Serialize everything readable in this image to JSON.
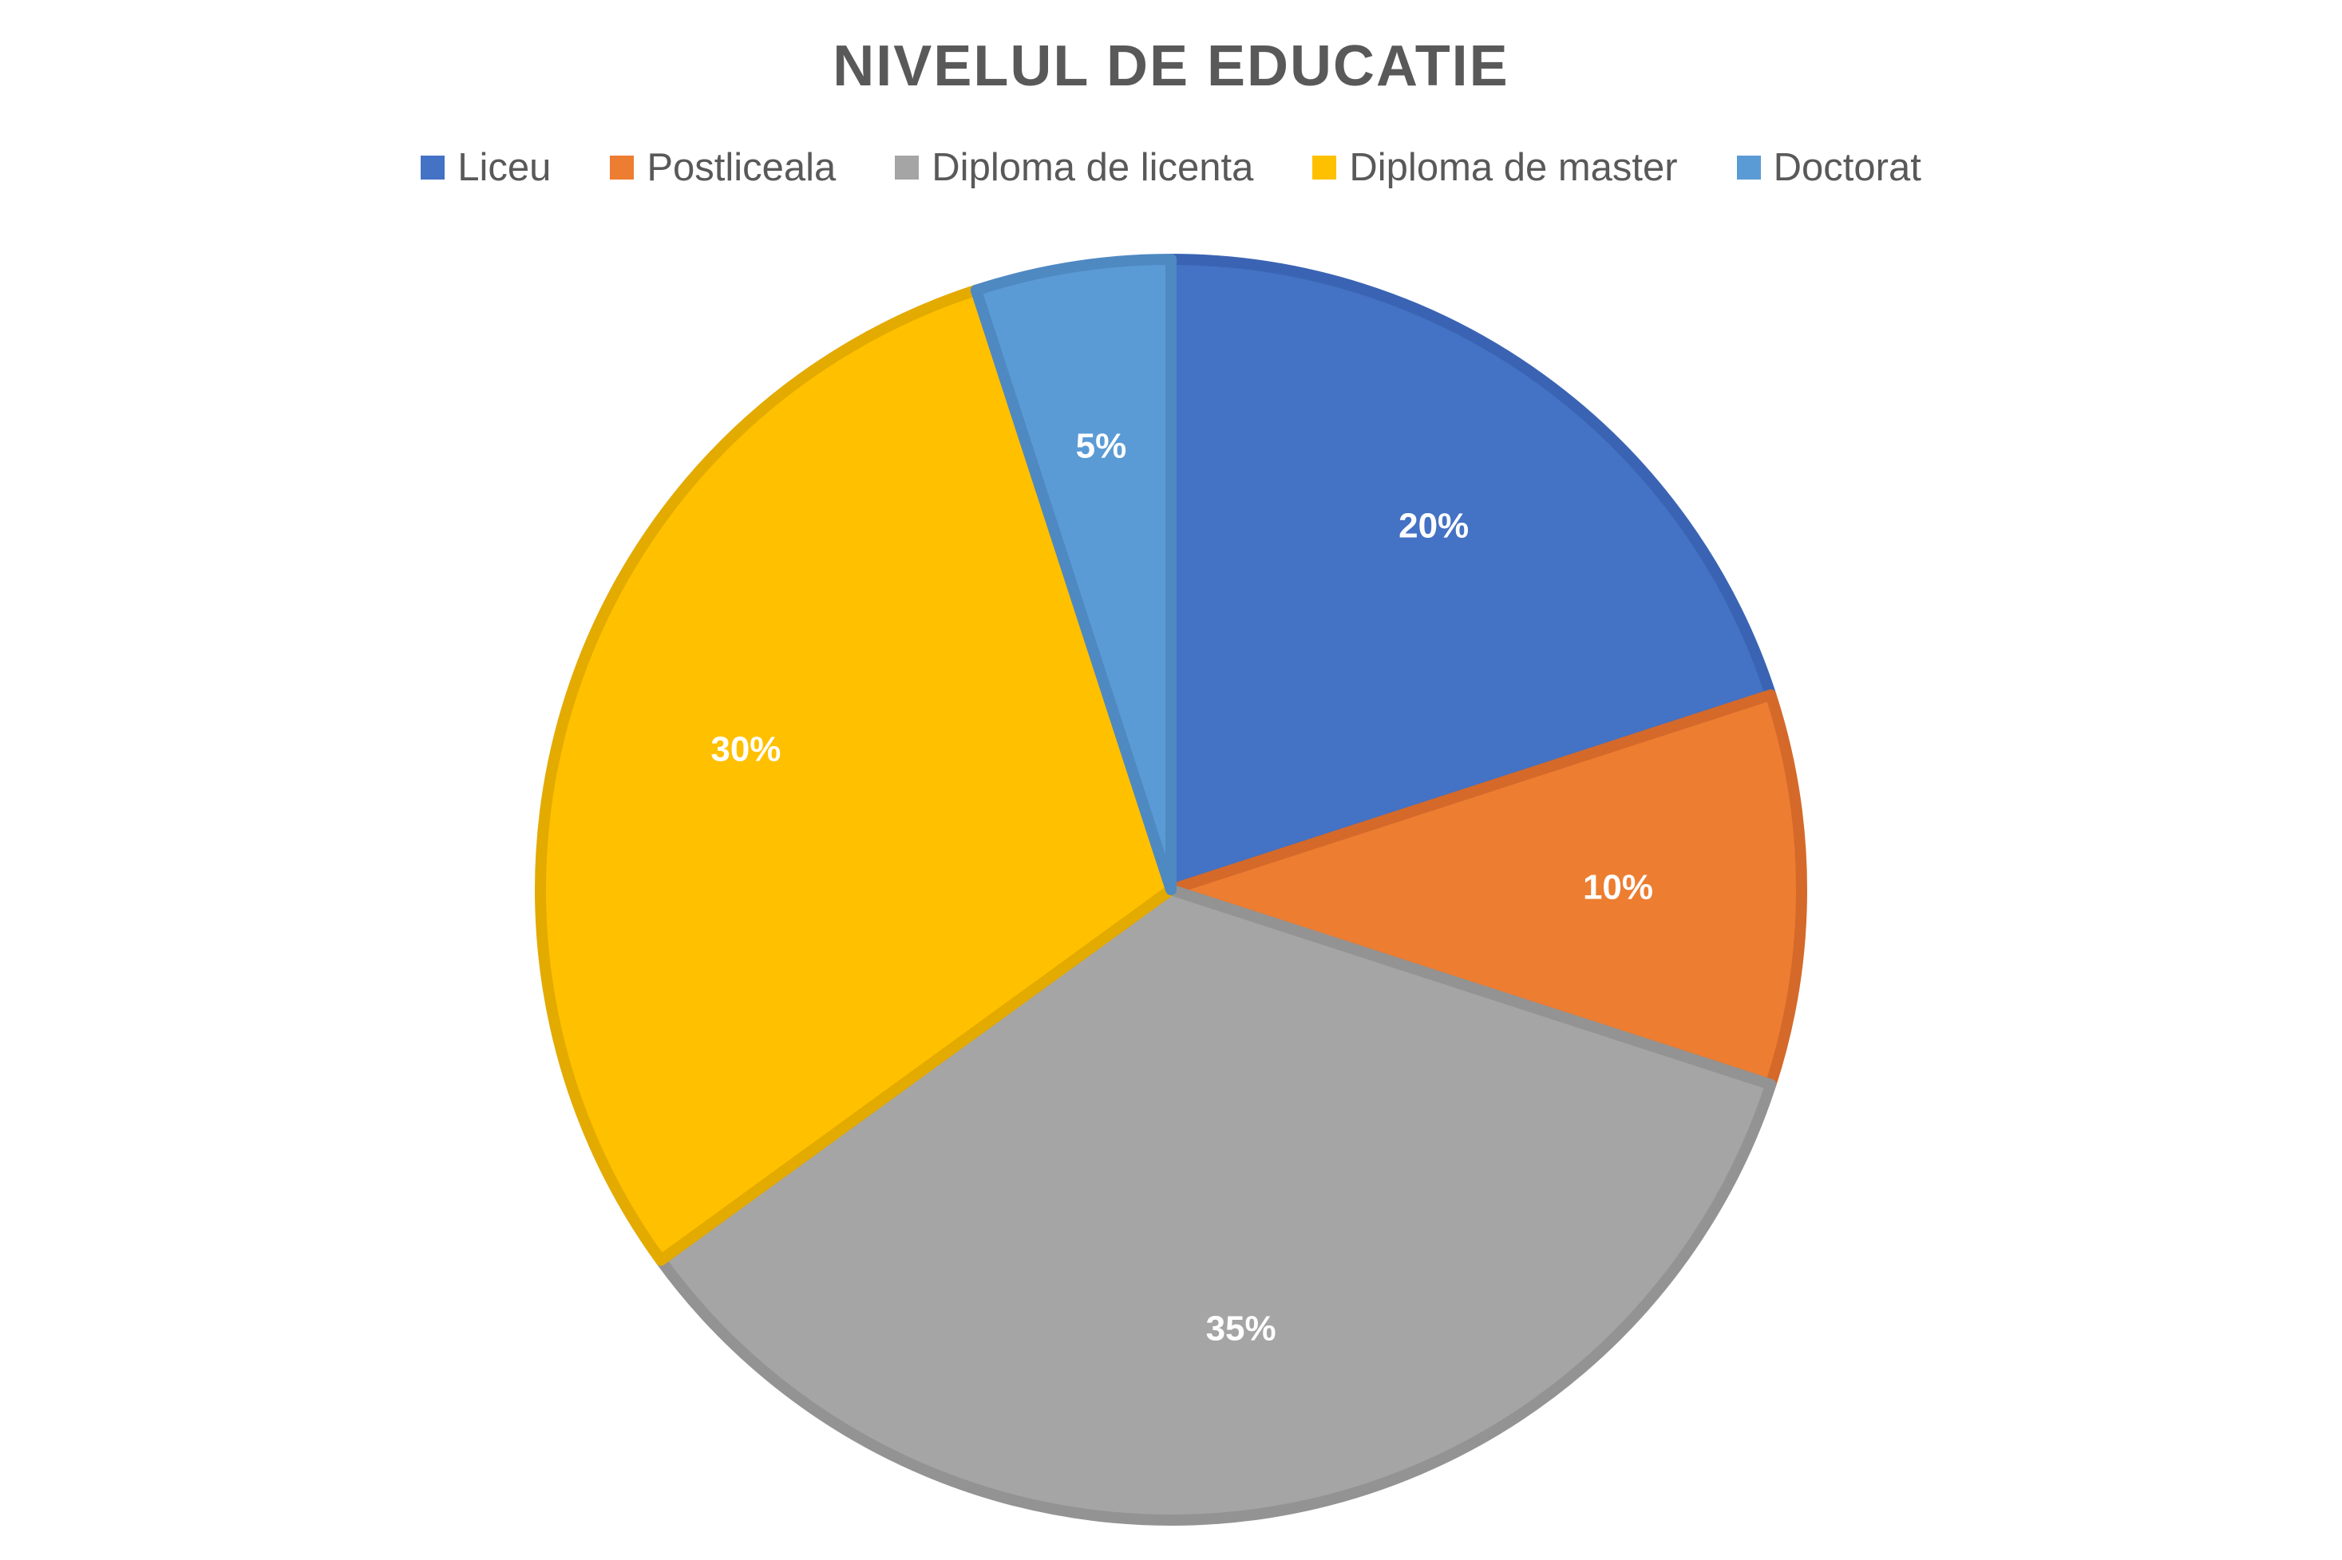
{
  "chart_data": {
    "type": "pie",
    "title": "NIVELUL DE EDUCATIE",
    "legend_position": "top",
    "categories": [
      "Liceu",
      "Postliceala",
      "Diploma de licenta",
      "Diploma de master",
      "Doctorat"
    ],
    "values": [
      20,
      10,
      35,
      30,
      5
    ],
    "labels": [
      "20%",
      "10%",
      "35%",
      "30%",
      "5%"
    ],
    "colors": [
      "#4472C4",
      "#ED7D31",
      "#A5A5A5",
      "#FFC000",
      "#5B9BD5"
    ],
    "border_colors": [
      "#3A64B3",
      "#D4692A",
      "#939393",
      "#E3AA00",
      "#4E89C2"
    ]
  }
}
